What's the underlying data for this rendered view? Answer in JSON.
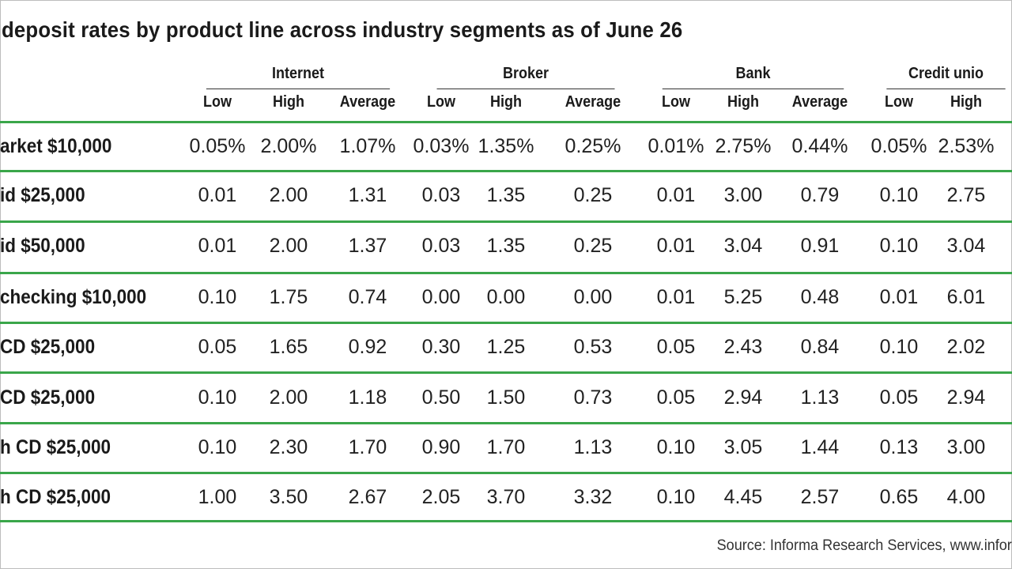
{
  "chart_data": {
    "type": "table",
    "title": "deposit rates by product line across industry segments as of June 26",
    "groups": [
      {
        "name": "Internet",
        "columns": [
          "Low",
          "High",
          "Average"
        ]
      },
      {
        "name": "Broker",
        "columns": [
          "Low",
          "High",
          "Average"
        ]
      },
      {
        "name": "Bank",
        "columns": [
          "Low",
          "High",
          "Average"
        ]
      },
      {
        "name": "Credit unio",
        "columns": [
          "Low",
          "High"
        ]
      }
    ],
    "rows": [
      {
        "label": "arket $10,000",
        "values": [
          "0.05%",
          "2.00%",
          "1.07%",
          "0.03%",
          "1.35%",
          "0.25%",
          "0.01%",
          "2.75%",
          "0.44%",
          "0.05%",
          "2.53%"
        ]
      },
      {
        "label": "id $25,000",
        "values": [
          "0.01",
          "2.00",
          "1.31",
          "0.03",
          "1.35",
          "0.25",
          "0.01",
          "3.00",
          "0.79",
          "0.10",
          "2.75"
        ]
      },
      {
        "label": "id $50,000",
        "values": [
          "0.01",
          "2.00",
          "1.37",
          "0.03",
          "1.35",
          "0.25",
          "0.01",
          "3.04",
          "0.91",
          "0.10",
          "3.04"
        ]
      },
      {
        "label": "checking $10,000",
        "values": [
          "0.10",
          "1.75",
          "0.74",
          "0.00",
          "0.00",
          "0.00",
          "0.01",
          "5.25",
          "0.48",
          "0.01",
          "6.01"
        ]
      },
      {
        "label": "CD $25,000",
        "values": [
          "0.05",
          "1.65",
          "0.92",
          "0.30",
          "1.25",
          "0.53",
          "0.05",
          "2.43",
          "0.84",
          "0.10",
          "2.02"
        ]
      },
      {
        "label": "CD $25,000",
        "values": [
          "0.10",
          "2.00",
          "1.18",
          "0.50",
          "1.50",
          "0.73",
          "0.05",
          "2.94",
          "1.13",
          "0.05",
          "2.94"
        ]
      },
      {
        "label": "h CD $25,000",
        "values": [
          "0.10",
          "2.30",
          "1.70",
          "0.90",
          "1.70",
          "1.13",
          "0.10",
          "3.05",
          "1.44",
          "0.13",
          "3.00"
        ]
      },
      {
        "label": "h CD $25,000",
        "values": [
          "1.00",
          "3.50",
          "2.67",
          "2.05",
          "3.70",
          "3.32",
          "0.10",
          "4.45",
          "2.57",
          "0.65",
          "4.00"
        ]
      }
    ],
    "source": "Source: Informa Research Services, www.infor"
  },
  "colors": {
    "rule": "#3aa64a",
    "text": "#1a1a1a"
  }
}
